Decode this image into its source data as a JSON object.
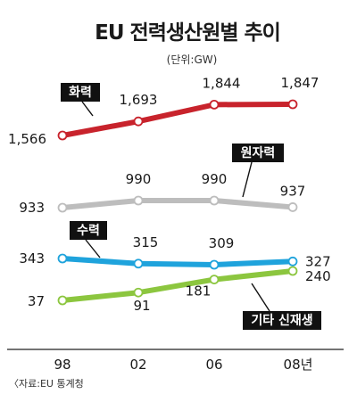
{
  "chart_data": {
    "type": "line",
    "title": "EU 전력생산원별 추이",
    "unit": "(단위:GW)",
    "categories": [
      "98",
      "02",
      "06",
      "08년"
    ],
    "series": [
      {
        "name": "화력",
        "values": [
          1566,
          1693,
          1844,
          1847
        ],
        "labels": [
          "1,566",
          "1,693",
          "1,844",
          "1,847"
        ],
        "color": "#c8232c"
      },
      {
        "name": "원자력",
        "values": [
          933,
          990,
          990,
          937
        ],
        "labels": [
          "933",
          "990",
          "990",
          "937"
        ],
        "color": "#bdbdbd"
      },
      {
        "name": "수력",
        "values": [
          343,
          315,
          309,
          327
        ],
        "labels": [
          "343",
          "315",
          "309",
          "327"
        ],
        "color": "#1fa3dc"
      },
      {
        "name": "기타 신재생",
        "values": [
          37,
          91,
          181,
          240
        ],
        "labels": [
          "37",
          "91",
          "181",
          "240"
        ],
        "color": "#8cc63f"
      }
    ],
    "grid": false,
    "legend": "inline-tags"
  },
  "source": "〈자료:EU 통계청"
}
